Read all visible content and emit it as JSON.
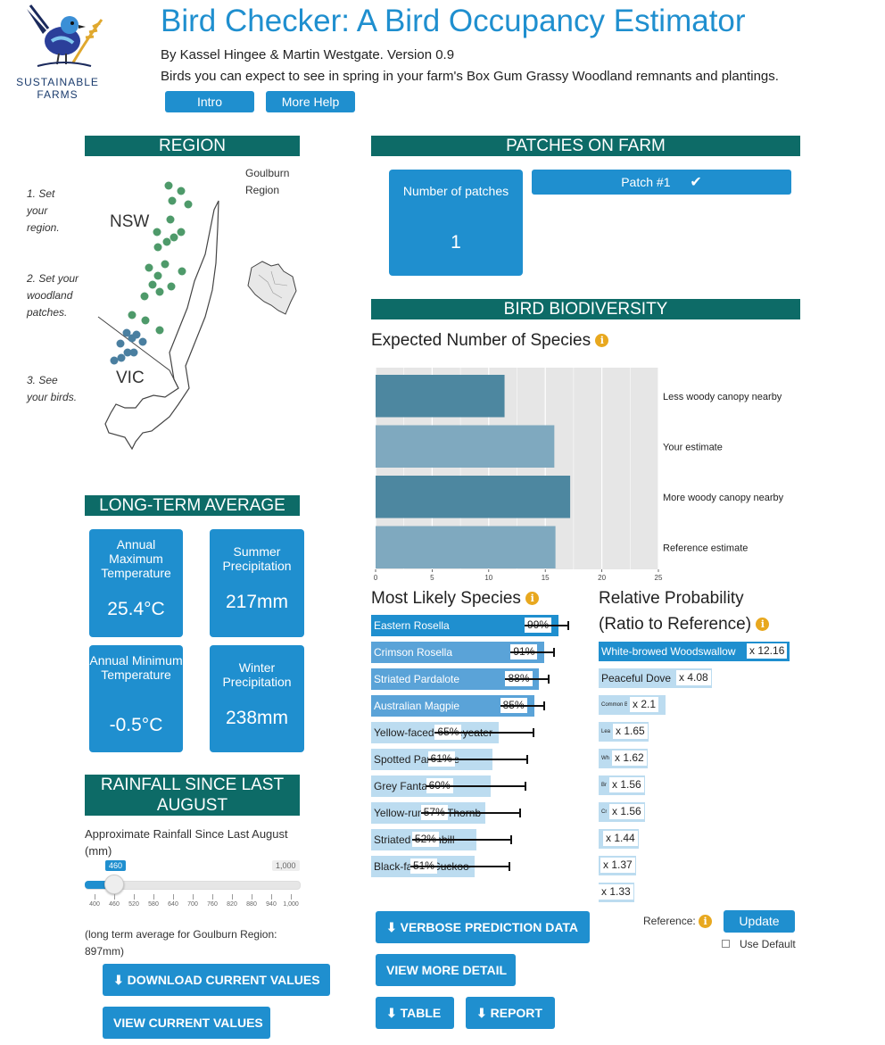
{
  "header": {
    "title": "Bird Checker: A Bird Occupancy Estimator",
    "authors": "By Kassel Hingee & Martin Westgate. Version 0.9",
    "tagline": "Birds you can expect to see in spring in your farm's Box Gum Grassy Woodland remnants and plantings.",
    "intro_button": "Intro",
    "help_button": "More Help",
    "logo_text_1": "SUSTAINABLE",
    "logo_text_2": "FARMS"
  },
  "region": {
    "heading": "REGION",
    "steps": [
      "1. Set your region.",
      "2. Set your woodland patches.",
      "3. See your birds."
    ],
    "map_labels": {
      "nsw": "NSW",
      "vic": "VIC"
    },
    "selected_region": "Goulburn Region"
  },
  "long_term_average": {
    "heading": "LONG-TERM AVERAGE",
    "cards": [
      {
        "label": "Annual Maximum Temperature",
        "value": "25.4°C"
      },
      {
        "label": "Summer Precipitation",
        "value": "217mm"
      },
      {
        "label": "Annual Minimum Temperature",
        "value": "-0.5°C"
      },
      {
        "label": "Winter Precipitation",
        "value": "238mm"
      }
    ]
  },
  "rainfall": {
    "heading": "RAINFALL SINCE LAST AUGUST",
    "slider_label": "Approximate Rainfall Since Last August (mm)",
    "slider": {
      "min": 400,
      "max": 1000,
      "value": 460,
      "value_label": "460",
      "max_label": "1,000"
    },
    "ticks": [
      "400",
      "460",
      "520",
      "580",
      "640",
      "700",
      "760",
      "820",
      "880",
      "940",
      "1,000"
    ],
    "note": "(long term average for Goulburn Region: 897mm)",
    "download_button": "DOWNLOAD CURRENT VALUES",
    "view_button": "VIEW CURRENT VALUES"
  },
  "patches": {
    "heading": "PATCHES ON FARM",
    "count_label": "Number of patches",
    "count_value": "1",
    "patch_button": "Patch #1"
  },
  "biodiversity": {
    "heading": "BIRD BIODIVERSITY",
    "expected_title": "Expected Number of Species",
    "chart_data": {
      "type": "bar",
      "orientation": "horizontal",
      "categories": [
        "Less woody canopy nearby",
        "Your estimate",
        "More woody canopy nearby",
        "Reference estimate"
      ],
      "values": [
        11.4,
        15.8,
        17.2,
        15.9
      ],
      "xlim": [
        0,
        25
      ],
      "xticks": [
        "0",
        "5",
        "10",
        "15",
        "20",
        "25"
      ],
      "colors": [
        "#4d87a0",
        "#7fa9bf",
        "#4d87a0",
        "#7fa9bf"
      ],
      "grid": true
    }
  },
  "most_likely": {
    "title": "Most Likely Species",
    "species": [
      {
        "name": "Eastern Rosella",
        "pct": "99%",
        "prob": 0.99
      },
      {
        "name": "Crimson Rosella",
        "pct": "91%",
        "prob": 0.91
      },
      {
        "name": "Striated Pardalote",
        "pct": "88%",
        "prob": 0.88
      },
      {
        "name": "Australian Magpie",
        "pct": "85%",
        "prob": 0.85
      },
      {
        "name": "Yellow-faced Honeyeater",
        "pct": "65%",
        "prob": 0.65
      },
      {
        "name": "Spotted Pardalote",
        "pct": "61%",
        "prob": 0.61
      },
      {
        "name": "Grey Fantail",
        "pct": "60%",
        "prob": 0.6
      },
      {
        "name": "Yellow-rumped Thornbill",
        "pct": "57%",
        "prob": 0.57
      },
      {
        "name": "Striated Thornbill",
        "pct": "52%",
        "prob": 0.52
      },
      {
        "name": "Black-faced Cuckoo-shrike",
        "pct": "51%",
        "prob": 0.51
      }
    ]
  },
  "relative": {
    "title_line1": "Relative Probability",
    "title_line2": "(Ratio to Reference)",
    "species": [
      {
        "name": "White-browed Woodswallow",
        "ratio": "x 12.16"
      },
      {
        "name": "Peaceful Dove",
        "ratio": "x 4.08"
      },
      {
        "name": "Common Bronzewing",
        "ratio": "x 2.1"
      },
      {
        "name": "Leaden Flycatcher",
        "ratio": "x 1.65"
      },
      {
        "name": "White",
        "ratio": "x 1.62"
      },
      {
        "name": "Brown",
        "ratio": "x 1.56"
      },
      {
        "name": "Crested",
        "ratio": "x 1.56"
      },
      {
        "name": "",
        "ratio": "x 1.44"
      },
      {
        "name": "",
        "ratio": "x 1.37"
      },
      {
        "name": "",
        "ratio": "x 1.33"
      }
    ],
    "reference_label": "Reference:",
    "update_button": "Update",
    "use_default_label": "Use Default"
  },
  "actions": {
    "verbose_button": "VERBOSE PREDICTION DATA",
    "more_detail_button": "VIEW MORE DETAIL",
    "table_button": "TABLE",
    "report_button": "REPORT"
  },
  "colors": {
    "primary": "#1f8fcf",
    "section": "#0d6b67",
    "map_dot_nsw": "#4e9a6a",
    "map_dot_vic": "#4a7fa0"
  }
}
